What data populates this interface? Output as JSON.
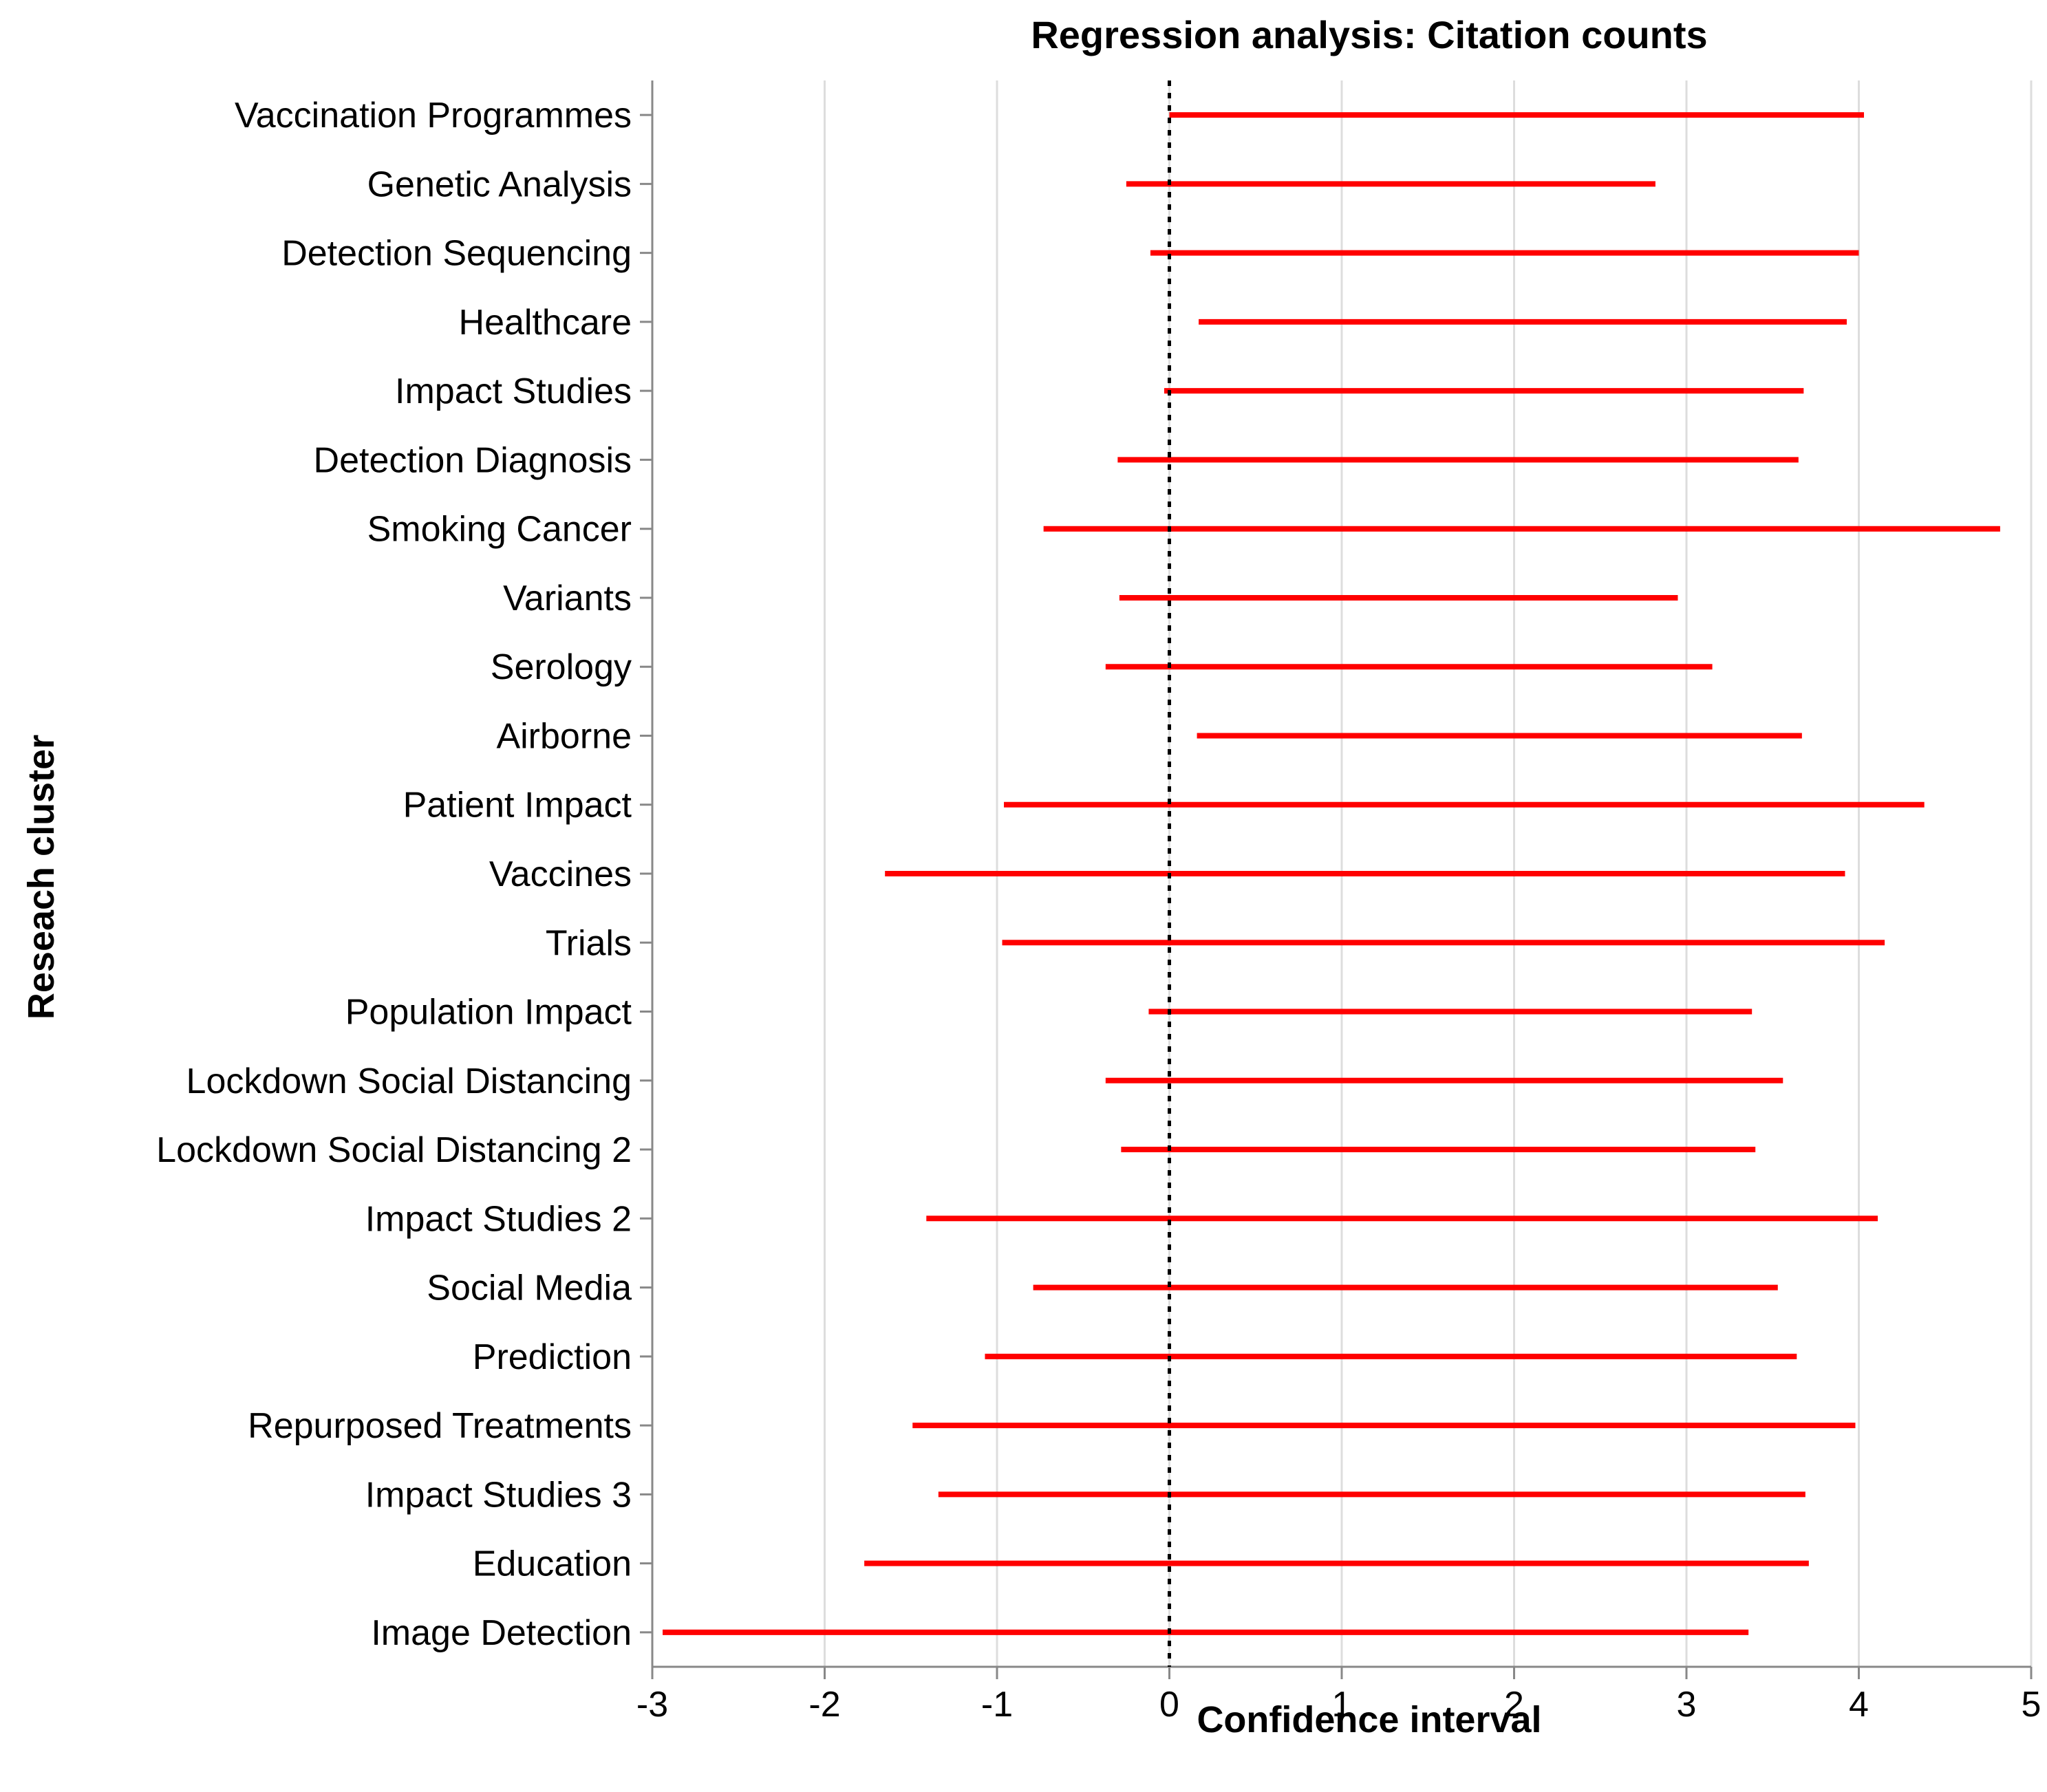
{
  "chart_data": {
    "type": "interval",
    "title": "Regression analysis: Citation counts",
    "xlabel": "Confidence interval",
    "ylabel": "Reseach cluster",
    "xlim": [
      -3,
      5
    ],
    "xticks": [
      -3,
      -2,
      -1,
      0,
      1,
      2,
      3,
      4,
      5
    ],
    "grid": true,
    "reference_line_x": 0,
    "bar_color": "#ff0000",
    "categories": [
      "Vaccination Programmes",
      "Genetic Analysis",
      "Detection Sequencing",
      "Healthcare",
      "Impact Studies",
      "Detection Diagnosis",
      "Smoking Cancer",
      "Variants",
      "Serology",
      "Airborne",
      "Patient Impact",
      "Vaccines",
      "Trials",
      "Population Impact",
      "Lockdown Social Distancing",
      "Lockdown Social Distancing 2",
      "Impact Studies 2",
      "Social Media",
      "Prediction",
      "Repurposed Treatments",
      "Impact Studies 3",
      "Education",
      "Image Detection"
    ],
    "intervals": [
      [
        0.0,
        4.03
      ],
      [
        -0.25,
        2.82
      ],
      [
        -0.11,
        4.0
      ],
      [
        0.17,
        3.93
      ],
      [
        -0.03,
        3.68
      ],
      [
        -0.3,
        3.65
      ],
      [
        -0.73,
        4.82
      ],
      [
        -0.29,
        2.95
      ],
      [
        -0.37,
        3.15
      ],
      [
        0.16,
        3.67
      ],
      [
        -0.96,
        4.38
      ],
      [
        -1.65,
        3.92
      ],
      [
        -0.97,
        4.15
      ],
      [
        -0.12,
        3.38
      ],
      [
        -0.37,
        3.56
      ],
      [
        -0.28,
        3.4
      ],
      [
        -1.41,
        4.11
      ],
      [
        -0.79,
        3.53
      ],
      [
        -1.07,
        3.64
      ],
      [
        -1.49,
        3.98
      ],
      [
        -1.34,
        3.69
      ],
      [
        -1.77,
        3.71
      ],
      [
        -2.94,
        3.36
      ]
    ]
  }
}
